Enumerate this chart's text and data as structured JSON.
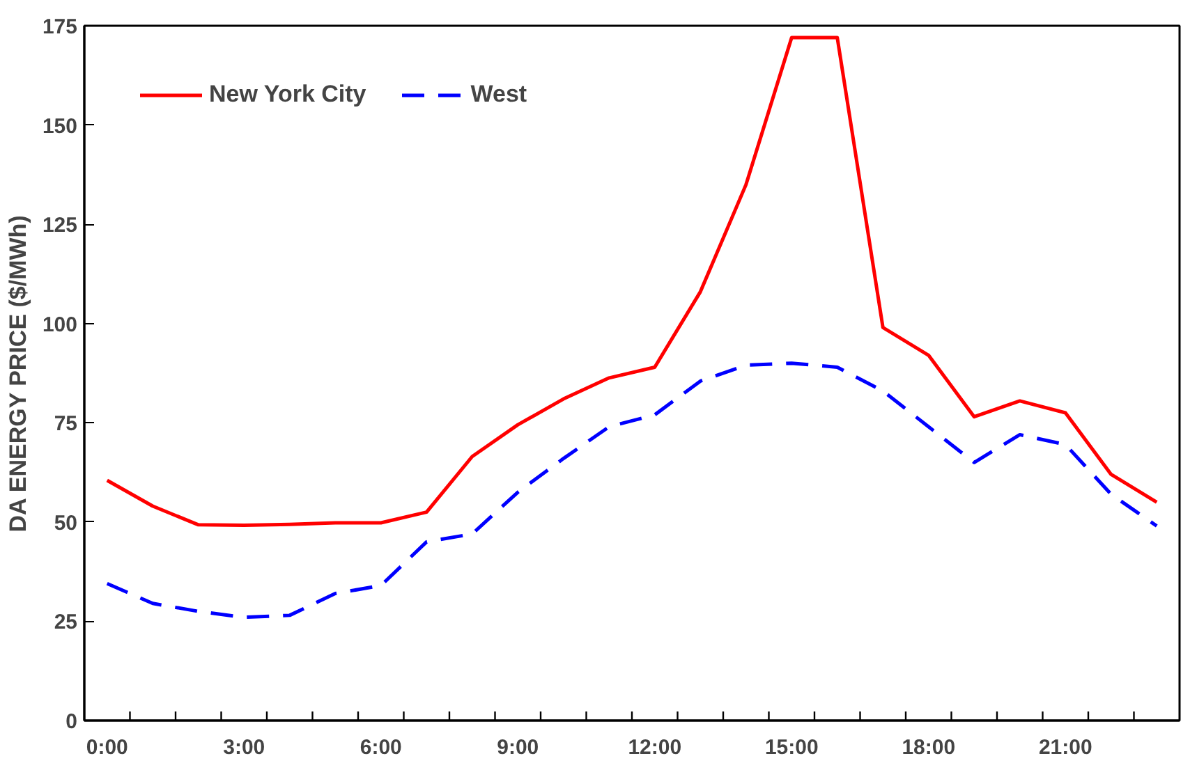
{
  "chart_data": {
    "type": "line",
    "ylabel": "DA ENERGY PRICE ($/MWh)",
    "categories": [
      "0:00",
      null,
      null,
      "3:00",
      null,
      null,
      "6:00",
      null,
      null,
      "9:00",
      null,
      null,
      "12:00",
      null,
      null,
      "15:00",
      null,
      null,
      "18:00",
      null,
      null,
      "21:00",
      null,
      null
    ],
    "series": [
      {
        "name": "New York City",
        "color": "#ff0000",
        "line_style": "solid",
        "values": [
          60.5,
          54,
          49.3,
          49.2,
          49.4,
          49.8,
          49.8,
          52.5,
          66.5,
          74.5,
          81,
          86.3,
          89,
          108,
          135,
          172,
          172,
          99,
          92,
          76.5,
          80.5,
          77.5,
          62,
          55
        ]
      },
      {
        "name": "West",
        "color": "#0000ff",
        "line_style": "dashed",
        "values": [
          34.5,
          29.5,
          27.5,
          26,
          26.5,
          32,
          34,
          45,
          47,
          57.5,
          66,
          74,
          77,
          85.5,
          89.5,
          90,
          89,
          83,
          74,
          65,
          72,
          69.5,
          57,
          49
        ]
      }
    ],
    "ylim": [
      0,
      175
    ],
    "yticks": [
      0,
      25,
      50,
      75,
      100,
      125,
      150,
      175
    ],
    "grid": false,
    "legend": "top left",
    "marker": "none"
  }
}
